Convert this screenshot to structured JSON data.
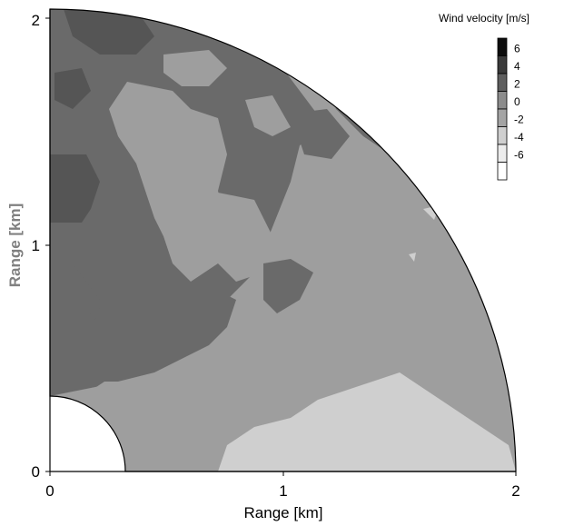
{
  "chart_data": {
    "type": "heatmap",
    "plot_kind": "polar-sector contour",
    "title": "",
    "xlabel": "Range [km]",
    "ylabel": "Range [km]",
    "xlim": [
      0,
      2.05
    ],
    "ylim": [
      0,
      2.05
    ],
    "x_ticks": [
      "0",
      "1",
      "2"
    ],
    "y_ticks": [
      "0",
      "1",
      "2"
    ],
    "r_min_km": 0.33,
    "r_max_km": 2.05,
    "colorbar": {
      "title": "Wind velocity [m/s]",
      "levels": [
        "6",
        "4",
        "2",
        "0",
        "-2",
        "-4",
        "-6"
      ],
      "colors": [
        "#0d0d0d",
        "#3a3a3a",
        "#5e5e5e",
        "#8c8c8c",
        "#a4a4a4",
        "#cfcfcf",
        "#ececec",
        "#ffffff"
      ]
    },
    "regions": [
      {
        "name": "outer-sector-background",
        "level": "0",
        "color": "#9e9e9e"
      },
      {
        "name": "upper-left-band",
        "level": "2",
        "color": "#6a6a6a"
      },
      {
        "name": "top-edge-patch",
        "level": "4",
        "color": "#555555"
      },
      {
        "name": "left-lobe",
        "level": "4",
        "color": "#555555"
      },
      {
        "name": "lower-left-band",
        "level": "2",
        "color": "#6a6a6a"
      },
      {
        "name": "center-pocket",
        "level": "0",
        "color": "#9e9e9e"
      },
      {
        "name": "mid-right-spots",
        "level": "2",
        "color": "#6a6a6a"
      },
      {
        "name": "inner-ring-band",
        "level": "0",
        "color": "#9e9e9e"
      },
      {
        "name": "bottom-right-patch",
        "level": "-2",
        "color": "#cfcfcf"
      }
    ]
  }
}
